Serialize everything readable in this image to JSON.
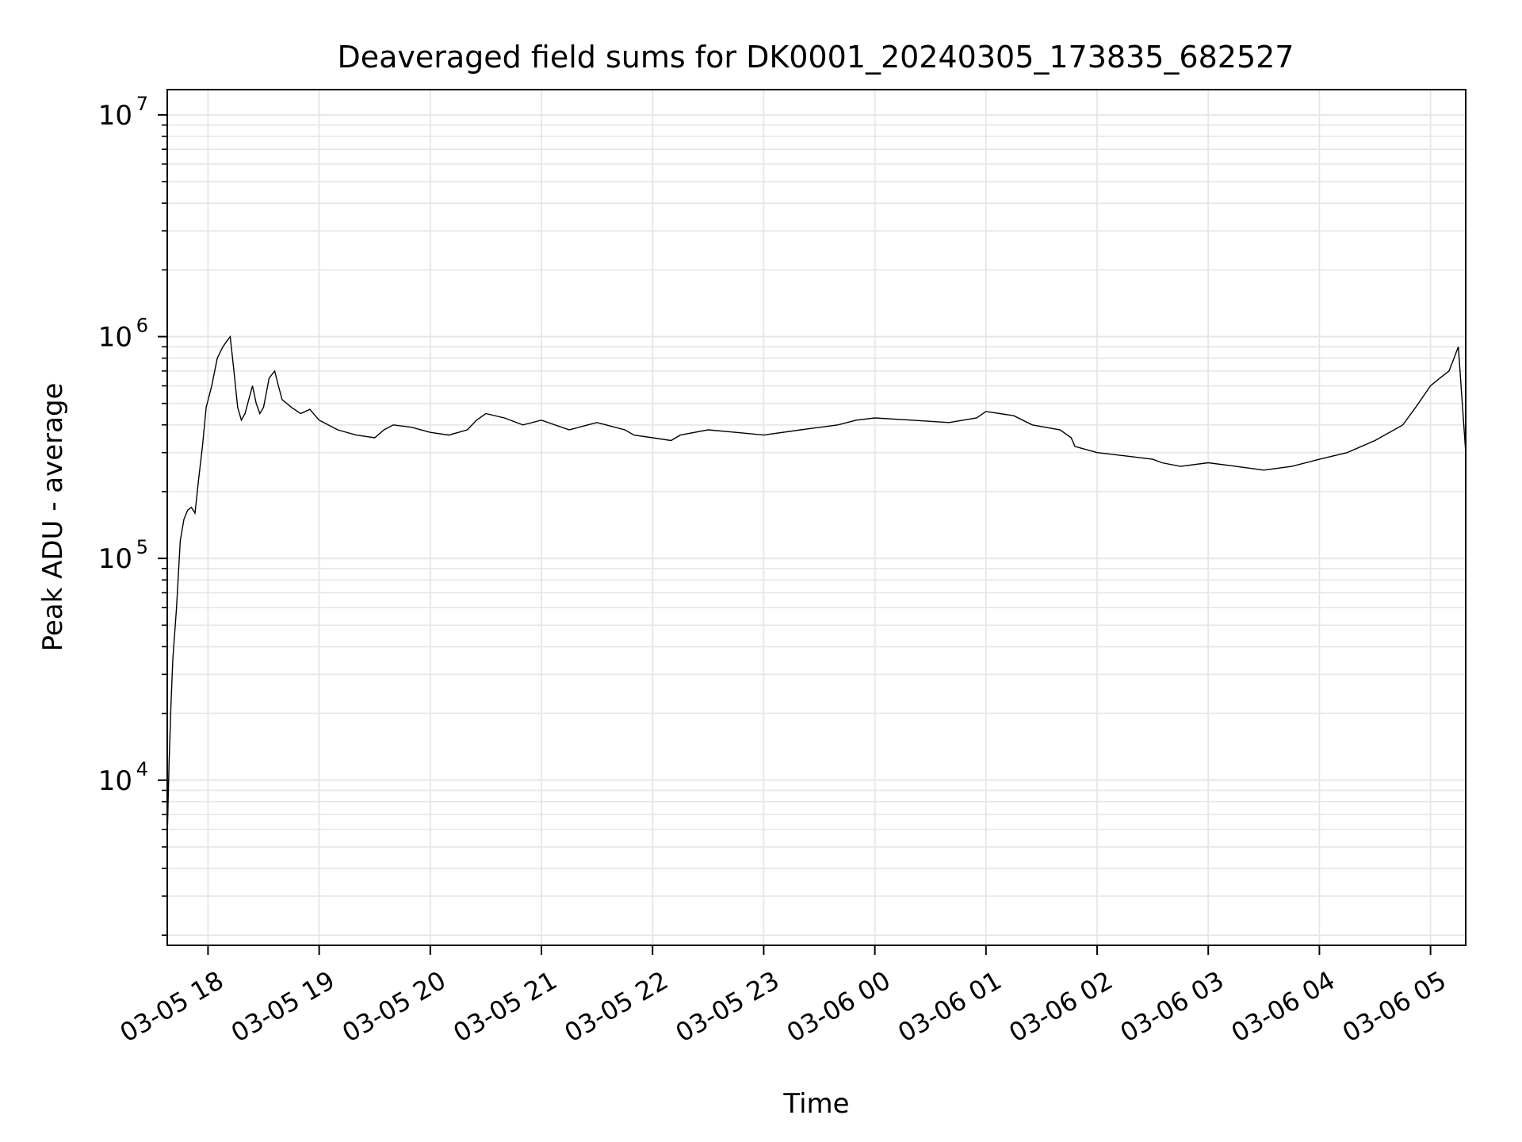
{
  "chart_data": {
    "type": "line",
    "title": "Deaveraged field sums for DK0001_20240305_173835_682527",
    "xlabel": "Time",
    "ylabel": "Peak ADU - average",
    "yscale": "log",
    "ylim": [
      1800,
      13000000
    ],
    "xlim": [
      "2024-03-05 17:38",
      "2024-03-06 05:19"
    ],
    "grid": "major and minor",
    "line_color": "#000000",
    "grid_color": "#e6e6e6",
    "x_ticks": [
      {
        "value": "2024-03-05 18:00",
        "label": "03-05 18"
      },
      {
        "value": "2024-03-05 19:00",
        "label": "03-05 19"
      },
      {
        "value": "2024-03-05 20:00",
        "label": "03-05 20"
      },
      {
        "value": "2024-03-05 21:00",
        "label": "03-05 21"
      },
      {
        "value": "2024-03-05 22:00",
        "label": "03-05 22"
      },
      {
        "value": "2024-03-05 23:00",
        "label": "03-05 23"
      },
      {
        "value": "2024-03-06 00:00",
        "label": "03-06 00"
      },
      {
        "value": "2024-03-06 01:00",
        "label": "03-06 01"
      },
      {
        "value": "2024-03-06 02:00",
        "label": "03-06 02"
      },
      {
        "value": "2024-03-06 03:00",
        "label": "03-06 03"
      },
      {
        "value": "2024-03-06 04:00",
        "label": "03-06 04"
      },
      {
        "value": "2024-03-06 05:00",
        "label": "03-06 05"
      }
    ],
    "y_ticks": [
      {
        "value": 10000,
        "base": "10",
        "exp": "4"
      },
      {
        "value": 100000,
        "base": "10",
        "exp": "5"
      },
      {
        "value": 1000000,
        "base": "10",
        "exp": "6"
      },
      {
        "value": 10000000,
        "base": "10",
        "exp": "7"
      }
    ],
    "series": [
      {
        "x": [
          "2024-03-05 17:38",
          "2024-03-05 17:39",
          "2024-03-05 17:40",
          "2024-03-05 17:41",
          "2024-03-05 17:43",
          "2024-03-05 17:45",
          "2024-03-05 17:47",
          "2024-03-05 17:49",
          "2024-03-05 17:51",
          "2024-03-05 17:53",
          "2024-03-05 17:55",
          "2024-03-05 17:57",
          "2024-03-05 17:59",
          "2024-03-05 18:02",
          "2024-03-05 18:05",
          "2024-03-05 18:08",
          "2024-03-05 18:10",
          "2024-03-05 18:12",
          "2024-03-05 18:14",
          "2024-03-05 18:16",
          "2024-03-05 18:18",
          "2024-03-05 18:20",
          "2024-03-05 18:22",
          "2024-03-05 18:24",
          "2024-03-05 18:26",
          "2024-03-05 18:28",
          "2024-03-05 18:30",
          "2024-03-05 18:33",
          "2024-03-05 18:36",
          "2024-03-05 18:38",
          "2024-03-05 18:40",
          "2024-03-05 18:45",
          "2024-03-05 18:50",
          "2024-03-05 18:55",
          "2024-03-05 19:00",
          "2024-03-05 19:10",
          "2024-03-05 19:20",
          "2024-03-05 19:30",
          "2024-03-05 19:35",
          "2024-03-05 19:40",
          "2024-03-05 19:50",
          "2024-03-05 20:00",
          "2024-03-05 20:10",
          "2024-03-05 20:20",
          "2024-03-05 20:25",
          "2024-03-05 20:30",
          "2024-03-05 20:40",
          "2024-03-05 20:50",
          "2024-03-05 21:00",
          "2024-03-05 21:15",
          "2024-03-05 21:25",
          "2024-03-05 21:30",
          "2024-03-05 21:45",
          "2024-03-05 21:50",
          "2024-03-05 22:00",
          "2024-03-05 22:10",
          "2024-03-05 22:15",
          "2024-03-05 22:30",
          "2024-03-05 22:45",
          "2024-03-05 23:00",
          "2024-03-05 23:20",
          "2024-03-05 23:40",
          "2024-03-05 23:50",
          "2024-03-06 00:00",
          "2024-03-06 00:20",
          "2024-03-06 00:40",
          "2024-03-06 00:55",
          "2024-03-06 01:00",
          "2024-03-06 01:15",
          "2024-03-06 01:25",
          "2024-03-06 01:40",
          "2024-03-06 01:46",
          "2024-03-06 01:48",
          "2024-03-06 02:00",
          "2024-03-06 02:15",
          "2024-03-06 02:30",
          "2024-03-06 02:35",
          "2024-03-06 02:45",
          "2024-03-06 03:00",
          "2024-03-06 03:15",
          "2024-03-06 03:30",
          "2024-03-06 03:45",
          "2024-03-06 04:00",
          "2024-03-06 04:15",
          "2024-03-06 04:30",
          "2024-03-06 04:45",
          "2024-03-06 04:52",
          "2024-03-06 05:00",
          "2024-03-06 05:05",
          "2024-03-06 05:10",
          "2024-03-06 05:15",
          "2024-03-06 05:19"
        ],
        "y": [
          5500,
          12000,
          22000,
          35000,
          60000,
          120000,
          150000,
          165000,
          170000,
          160000,
          230000,
          320000,
          480000,
          600000,
          800000,
          900000,
          950000,
          1000000,
          700000,
          480000,
          420000,
          450000,
          520000,
          600000,
          500000,
          450000,
          480000,
          650000,
          700000,
          600000,
          520000,
          480000,
          450000,
          470000,
          420000,
          380000,
          360000,
          350000,
          380000,
          400000,
          390000,
          370000,
          360000,
          380000,
          420000,
          450000,
          430000,
          400000,
          420000,
          380000,
          400000,
          410000,
          380000,
          360000,
          350000,
          340000,
          360000,
          380000,
          370000,
          360000,
          380000,
          400000,
          420000,
          430000,
          420000,
          410000,
          430000,
          460000,
          440000,
          400000,
          380000,
          350000,
          320000,
          300000,
          290000,
          280000,
          270000,
          260000,
          270000,
          260000,
          250000,
          260000,
          280000,
          300000,
          340000,
          400000,
          480000,
          600000,
          650000,
          700000,
          900000,
          300000
        ]
      }
    ]
  }
}
